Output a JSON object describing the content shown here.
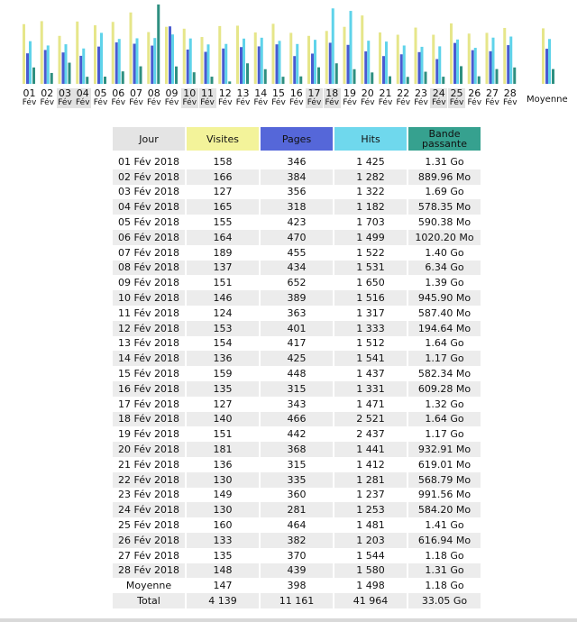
{
  "chart_data": {
    "type": "bar",
    "categories": [
      "01",
      "02",
      "03",
      "04",
      "05",
      "06",
      "07",
      "08",
      "09",
      "10",
      "11",
      "12",
      "13",
      "14",
      "15",
      "16",
      "17",
      "18",
      "19",
      "20",
      "21",
      "22",
      "23",
      "24",
      "25",
      "26",
      "27",
      "28"
    ],
    "month_label": "Fév",
    "weekend_days": [
      "03",
      "04",
      "10",
      "11",
      "17",
      "18",
      "24",
      "25"
    ],
    "series": [
      {
        "name": "Visites",
        "values": [
          158,
          166,
          127,
          165,
          155,
          164,
          189,
          137,
          151,
          146,
          124,
          153,
          154,
          136,
          159,
          135,
          127,
          140,
          151,
          181,
          136,
          130,
          149,
          130,
          160,
          133,
          135,
          148
        ]
      },
      {
        "name": "Pages",
        "values": [
          346,
          384,
          356,
          318,
          423,
          470,
          455,
          434,
          652,
          389,
          363,
          401,
          417,
          425,
          448,
          315,
          343,
          466,
          442,
          368,
          315,
          335,
          360,
          281,
          464,
          382,
          370,
          439
        ]
      },
      {
        "name": "Hits",
        "values": [
          1425,
          1282,
          1322,
          1182,
          1703,
          1499,
          1522,
          1531,
          1650,
          1516,
          1317,
          1333,
          1512,
          1541,
          1437,
          1331,
          1471,
          2521,
          2437,
          1441,
          1412,
          1281,
          1237,
          1253,
          1481,
          1203,
          1544,
          1580
        ]
      },
      {
        "name": "Bande passante",
        "values_mo": [
          1341,
          890,
          1731,
          578,
          590,
          1020,
          1434,
          6492,
          1423,
          946,
          587,
          195,
          1679,
          1198,
          582,
          609,
          1352,
          1679,
          1198,
          933,
          619,
          569,
          992,
          584,
          1444,
          617,
          1208,
          1341
        ]
      }
    ],
    "average": {
      "label": "Moyenne",
      "visites": 147,
      "pages": 398,
      "hits": 1498,
      "bande_mo": 1208
    },
    "colors": {
      "visites": "#e6e68a",
      "pages": "#4a5bd0",
      "hits": "#5fd3ea",
      "bande": "#2e8f80"
    }
  },
  "table": {
    "headers": {
      "jour": "Jour",
      "visites": "Visites",
      "pages": "Pages",
      "hits": "Hits",
      "bande": "Bande passante"
    },
    "rows": [
      {
        "jour": "01 Fév 2018",
        "visites": "158",
        "pages": "346",
        "hits": "1 425",
        "bande": "1.31 Go"
      },
      {
        "jour": "02 Fév 2018",
        "visites": "166",
        "pages": "384",
        "hits": "1 282",
        "bande": "889.96 Mo"
      },
      {
        "jour": "03 Fév 2018",
        "visites": "127",
        "pages": "356",
        "hits": "1 322",
        "bande": "1.69 Go"
      },
      {
        "jour": "04 Fév 2018",
        "visites": "165",
        "pages": "318",
        "hits": "1 182",
        "bande": "578.35 Mo"
      },
      {
        "jour": "05 Fév 2018",
        "visites": "155",
        "pages": "423",
        "hits": "1 703",
        "bande": "590.38 Mo"
      },
      {
        "jour": "06 Fév 2018",
        "visites": "164",
        "pages": "470",
        "hits": "1 499",
        "bande": "1020.20 Mo"
      },
      {
        "jour": "07 Fév 2018",
        "visites": "189",
        "pages": "455",
        "hits": "1 522",
        "bande": "1.40 Go"
      },
      {
        "jour": "08 Fév 2018",
        "visites": "137",
        "pages": "434",
        "hits": "1 531",
        "bande": "6.34 Go"
      },
      {
        "jour": "09 Fév 2018",
        "visites": "151",
        "pages": "652",
        "hits": "1 650",
        "bande": "1.39 Go"
      },
      {
        "jour": "10 Fév 2018",
        "visites": "146",
        "pages": "389",
        "hits": "1 516",
        "bande": "945.90 Mo"
      },
      {
        "jour": "11 Fév 2018",
        "visites": "124",
        "pages": "363",
        "hits": "1 317",
        "bande": "587.40 Mo"
      },
      {
        "jour": "12 Fév 2018",
        "visites": "153",
        "pages": "401",
        "hits": "1 333",
        "bande": "194.64 Mo"
      },
      {
        "jour": "13 Fév 2018",
        "visites": "154",
        "pages": "417",
        "hits": "1 512",
        "bande": "1.64 Go"
      },
      {
        "jour": "14 Fév 2018",
        "visites": "136",
        "pages": "425",
        "hits": "1 541",
        "bande": "1.17 Go"
      },
      {
        "jour": "15 Fév 2018",
        "visites": "159",
        "pages": "448",
        "hits": "1 437",
        "bande": "582.34 Mo"
      },
      {
        "jour": "16 Fév 2018",
        "visites": "135",
        "pages": "315",
        "hits": "1 331",
        "bande": "609.28 Mo"
      },
      {
        "jour": "17 Fév 2018",
        "visites": "127",
        "pages": "343",
        "hits": "1 471",
        "bande": "1.32 Go"
      },
      {
        "jour": "18 Fév 2018",
        "visites": "140",
        "pages": "466",
        "hits": "2 521",
        "bande": "1.64 Go"
      },
      {
        "jour": "19 Fév 2018",
        "visites": "151",
        "pages": "442",
        "hits": "2 437",
        "bande": "1.17 Go"
      },
      {
        "jour": "20 Fév 2018",
        "visites": "181",
        "pages": "368",
        "hits": "1 441",
        "bande": "932.91 Mo"
      },
      {
        "jour": "21 Fév 2018",
        "visites": "136",
        "pages": "315",
        "hits": "1 412",
        "bande": "619.01 Mo"
      },
      {
        "jour": "22 Fév 2018",
        "visites": "130",
        "pages": "335",
        "hits": "1 281",
        "bande": "568.79 Mo"
      },
      {
        "jour": "23 Fév 2018",
        "visites": "149",
        "pages": "360",
        "hits": "1 237",
        "bande": "991.56 Mo"
      },
      {
        "jour": "24 Fév 2018",
        "visites": "130",
        "pages": "281",
        "hits": "1 253",
        "bande": "584.20 Mo"
      },
      {
        "jour": "25 Fév 2018",
        "visites": "160",
        "pages": "464",
        "hits": "1 481",
        "bande": "1.41 Go"
      },
      {
        "jour": "26 Fév 2018",
        "visites": "133",
        "pages": "382",
        "hits": "1 203",
        "bande": "616.94 Mo"
      },
      {
        "jour": "27 Fév 2018",
        "visites": "135",
        "pages": "370",
        "hits": "1 544",
        "bande": "1.18 Go"
      },
      {
        "jour": "28 Fév 2018",
        "visites": "148",
        "pages": "439",
        "hits": "1 580",
        "bande": "1.31 Go"
      }
    ],
    "average": {
      "jour": "Moyenne",
      "visites": "147",
      "pages": "398",
      "hits": "1 498",
      "bande": "1.18 Go"
    },
    "total": {
      "jour": "Total",
      "visites": "4 139",
      "pages": "11 161",
      "hits": "41 964",
      "bande": "33.05 Go"
    }
  }
}
